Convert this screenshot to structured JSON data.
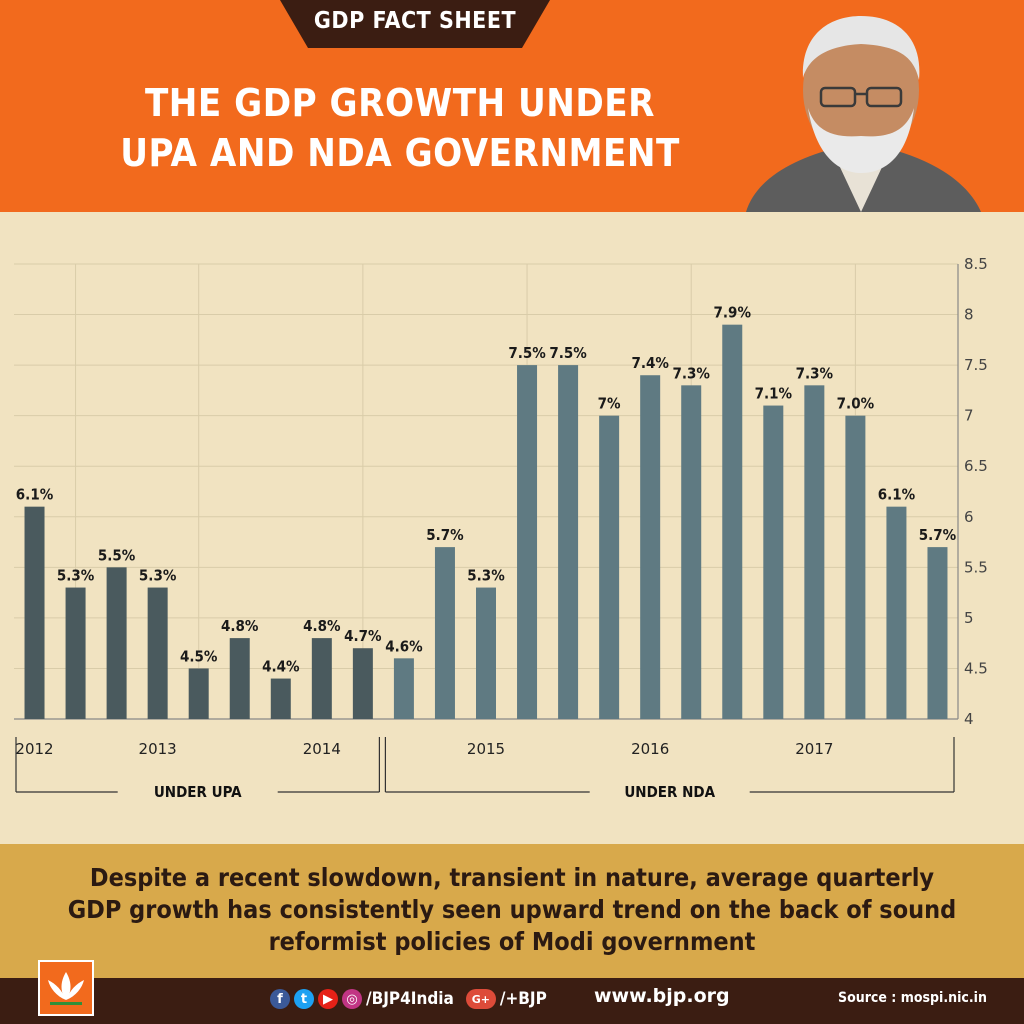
{
  "header": {
    "tag": "GDP FACT SHEET",
    "title_line1": "THE GDP GROWTH UNDER",
    "title_line2": "UPA AND NDA GOVERNMENT"
  },
  "chart_data": {
    "type": "bar",
    "title": "",
    "xlabel": "",
    "ylabel": "",
    "ylim": [
      4,
      8.5
    ],
    "yticks": [
      "8.5",
      "8",
      "7.5",
      "7",
      "6.5",
      "6",
      "5.5",
      "5",
      "4.5",
      "4"
    ],
    "grid": true,
    "y_axis_side": "right",
    "values": [
      6.1,
      5.3,
      5.5,
      5.3,
      4.5,
      4.8,
      4.4,
      4.8,
      4.7,
      4.6,
      5.7,
      5.3,
      7.5,
      7.5,
      7.0,
      7.4,
      7.3,
      7.9,
      7.1,
      7.3,
      7.0,
      6.1,
      5.7
    ],
    "data_labels": [
      "6.1%",
      "5.3%",
      "5.5%",
      "5.3%",
      "4.5%",
      "4.8%",
      "4.4%",
      "4.8%",
      "4.7%",
      "4.6%",
      "5.7%",
      "5.3%",
      "7.5%",
      "7.5%",
      "7%",
      "7.4%",
      "7.3%",
      "7.9%",
      "7.1%",
      "7.3%",
      "7.0%",
      "6.1%",
      "5.7%"
    ],
    "year_labels": [
      {
        "label": "2012",
        "at_bar": 0
      },
      {
        "label": "2013",
        "at_bar": 3
      },
      {
        "label": "2014",
        "at_bar": 7
      },
      {
        "label": "2015",
        "at_bar": 11
      },
      {
        "label": "2016",
        "at_bar": 15
      },
      {
        "label": "2017",
        "at_bar": 19
      }
    ],
    "groups": [
      {
        "label": "UNDER UPA",
        "from_bar": 0,
        "to_bar": 8
      },
      {
        "label": "UNDER NDA",
        "from_bar": 9,
        "to_bar": 22
      }
    ],
    "colors": {
      "upa_bar": "#4a5a5e",
      "nda_bar": "#5f7a82",
      "grid": "#d9cca9"
    }
  },
  "summary": {
    "line1": "Despite a recent slowdown, transient in nature, average quarterly",
    "line2": "GDP growth has consistently seen upward trend on the back of sound",
    "line3": "reformist policies of Modi government"
  },
  "footer": {
    "handle": "/BJP4India",
    "gplus": "/+BJP",
    "website": "www.bjp.org",
    "source": "Source :  mospi.nic.in"
  }
}
